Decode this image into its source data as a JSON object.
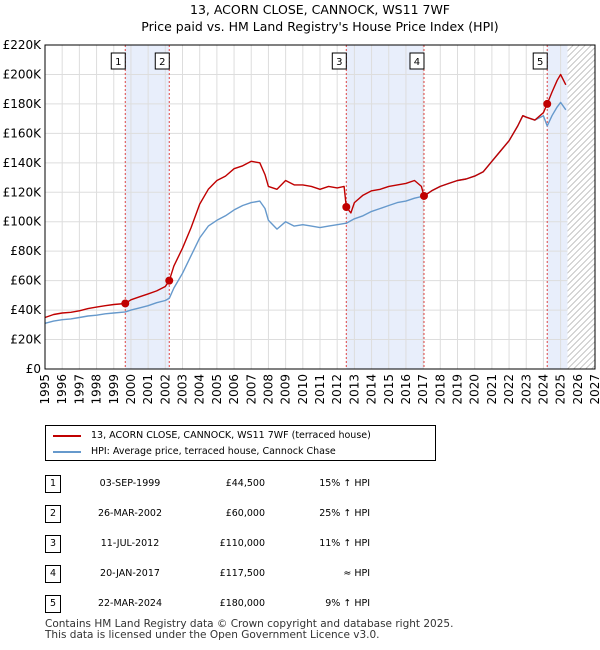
{
  "chart_data": {
    "type": "line",
    "title": "13, ACORN CLOSE, CANNOCK, WS11 7WF",
    "subtitle": "Price paid vs. HM Land Registry's House Price Index (HPI)",
    "xlim": [
      1995,
      2027
    ],
    "ylim": [
      0,
      220000
    ],
    "y_ticks": [
      0,
      20000,
      40000,
      60000,
      80000,
      100000,
      120000,
      140000,
      160000,
      180000,
      200000,
      220000
    ],
    "y_tick_labels": [
      "£0",
      "£20K",
      "£40K",
      "£60K",
      "£80K",
      "£100K",
      "£120K",
      "£140K",
      "£160K",
      "£180K",
      "£200K",
      "£220K"
    ],
    "x_ticks": [
      1995,
      1996,
      1997,
      1998,
      1999,
      2000,
      2001,
      2002,
      2003,
      2004,
      2005,
      2006,
      2007,
      2008,
      2009,
      2010,
      2011,
      2012,
      2013,
      2014,
      2015,
      2016,
      2017,
      2018,
      2019,
      2020,
      2021,
      2022,
      2023,
      2024,
      2025,
      2026,
      2027
    ],
    "x_tick_labels": [
      "1995",
      "1996",
      "1997",
      "1998",
      "1999",
      "2000",
      "2001",
      "2002",
      "2003",
      "2004",
      "2005",
      "2006",
      "2007",
      "2008",
      "2009",
      "2010",
      "2011",
      "2012",
      "2013",
      "2014",
      "2015",
      "2016",
      "2017",
      "2018",
      "2019",
      "2020",
      "2021",
      "2022",
      "2023",
      "2024",
      "2025",
      "2026",
      "2027"
    ],
    "grid": true,
    "shaded_ranges": [
      [
        1999.67,
        2002.23
      ],
      [
        2012.53,
        2017.05
      ],
      [
        2024.22,
        2025.4
      ]
    ],
    "forecast_from": 2025.4,
    "series": [
      {
        "name": "13, ACORN CLOSE, CANNOCK, WS11 7WF (terraced house)",
        "color": "#c00000",
        "x": [
          1995.0,
          1995.5,
          1996.0,
          1996.5,
          1997.0,
          1997.5,
          1998.0,
          1998.5,
          1999.0,
          1999.67,
          2000.0,
          2000.5,
          2001.0,
          2001.5,
          2002.0,
          2002.23,
          2002.5,
          2003.0,
          2003.5,
          2004.0,
          2004.5,
          2005.0,
          2005.5,
          2006.0,
          2006.5,
          2007.0,
          2007.5,
          2007.8,
          2008.0,
          2008.5,
          2009.0,
          2009.5,
          2010.0,
          2010.5,
          2011.0,
          2011.5,
          2012.0,
          2012.4,
          2012.53,
          2012.8,
          2013.0,
          2013.5,
          2014.0,
          2014.5,
          2015.0,
          2015.5,
          2016.0,
          2016.5,
          2016.9,
          2017.05,
          2017.5,
          2018.0,
          2018.5,
          2019.0,
          2019.5,
          2020.0,
          2020.5,
          2021.0,
          2021.5,
          2022.0,
          2022.5,
          2022.8,
          2023.0,
          2023.5,
          2024.0,
          2024.22,
          2024.5,
          2024.8,
          2025.0,
          2025.3
        ],
        "values": [
          35000,
          37000,
          38000,
          38500,
          39500,
          41000,
          42000,
          43000,
          43800,
          44500,
          47000,
          49000,
          51000,
          53000,
          56000,
          60000,
          70000,
          82000,
          96000,
          112000,
          122000,
          128000,
          131000,
          136000,
          138000,
          141000,
          140000,
          132000,
          124000,
          122000,
          128000,
          125000,
          125000,
          124000,
          122000,
          124000,
          123000,
          124000,
          110000,
          106000,
          113000,
          118000,
          121000,
          122000,
          124000,
          125000,
          126000,
          128000,
          124000,
          117500,
          121000,
          124000,
          126000,
          128000,
          129000,
          131000,
          134000,
          141000,
          148000,
          155000,
          165000,
          172000,
          171000,
          169000,
          174000,
          180000,
          188000,
          196000,
          200000,
          193000
        ]
      },
      {
        "name": "HPI: Average price, terraced house, Cannock Chase",
        "color": "#6699cc",
        "x": [
          1995.0,
          1995.5,
          1996.0,
          1996.5,
          1997.0,
          1997.5,
          1998.0,
          1998.5,
          1999.0,
          1999.67,
          2000.0,
          2000.5,
          2001.0,
          2001.5,
          2002.0,
          2002.23,
          2002.5,
          2003.0,
          2003.5,
          2004.0,
          2004.5,
          2005.0,
          2005.5,
          2006.0,
          2006.5,
          2007.0,
          2007.5,
          2007.8,
          2008.0,
          2008.5,
          2009.0,
          2009.5,
          2010.0,
          2010.5,
          2011.0,
          2011.5,
          2012.0,
          2012.53,
          2013.0,
          2013.5,
          2014.0,
          2014.5,
          2015.0,
          2015.5,
          2016.0,
          2016.5,
          2017.05,
          2017.5,
          2018.0,
          2018.5,
          2019.0,
          2019.5,
          2020.0,
          2020.5,
          2021.0,
          2021.5,
          2022.0,
          2022.5,
          2022.8,
          2023.0,
          2023.5,
          2024.0,
          2024.22,
          2024.5,
          2024.8,
          2025.0,
          2025.3
        ],
        "values": [
          31000,
          32500,
          33500,
          34000,
          35000,
          36000,
          36500,
          37500,
          38000,
          38800,
          40000,
          41500,
          43000,
          45000,
          46500,
          48000,
          55000,
          65000,
          77000,
          89000,
          97000,
          101000,
          104000,
          108000,
          111000,
          113000,
          114000,
          109000,
          101000,
          95000,
          100000,
          97000,
          98000,
          97000,
          96000,
          97000,
          98000,
          99000,
          102000,
          104000,
          107000,
          109000,
          111000,
          113000,
          114000,
          116000,
          117500,
          121000,
          124000,
          126000,
          128000,
          129000,
          131000,
          134000,
          141000,
          148000,
          155000,
          165000,
          172000,
          171000,
          169000,
          172000,
          165000,
          172000,
          178000,
          181000,
          176000
        ]
      }
    ],
    "markers": [
      {
        "label": "1",
        "x": 1999.67,
        "value": 44500
      },
      {
        "label": "2",
        "x": 2002.23,
        "value": 60000
      },
      {
        "label": "3",
        "x": 2012.53,
        "value": 110000
      },
      {
        "label": "4",
        "x": 2017.05,
        "value": 117500
      },
      {
        "label": "5",
        "x": 2024.22,
        "value": 180000
      }
    ],
    "sales": [
      {
        "num": "1",
        "date": "03-SEP-1999",
        "price": "£44,500",
        "hpi": "15% ↑ HPI"
      },
      {
        "num": "2",
        "date": "26-MAR-2002",
        "price": "£60,000",
        "hpi": "25% ↑ HPI"
      },
      {
        "num": "3",
        "date": "11-JUL-2012",
        "price": "£110,000",
        "hpi": "11% ↑ HPI"
      },
      {
        "num": "4",
        "date": "20-JAN-2017",
        "price": "£117,500",
        "hpi": "≈ HPI"
      },
      {
        "num": "5",
        "date": "22-MAR-2024",
        "price": "£180,000",
        "hpi": "9% ↑ HPI"
      }
    ],
    "footer": [
      "Contains HM Land Registry data © Crown copyright and database right 2025.",
      "This data is licensed under the Open Government Licence v3.0."
    ]
  },
  "colors": {
    "property": "#c00000",
    "hpi": "#6699cc",
    "shade": "#e8eefb",
    "grid": "#dddddd"
  }
}
